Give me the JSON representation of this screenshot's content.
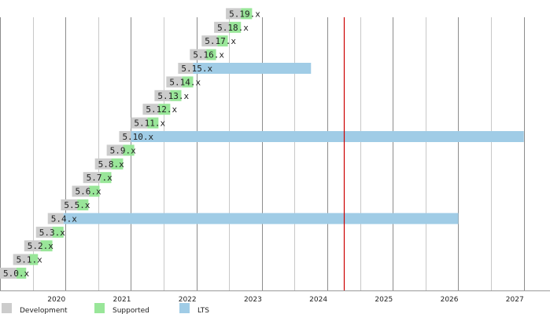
{
  "chart_data": {
    "type": "bar",
    "subtype": "gantt",
    "title": "",
    "xlabel": "",
    "ylabel": "",
    "x_axis": {
      "unit": "year",
      "ticks": [
        "2020",
        "2021",
        "2022",
        "2023",
        "2024",
        "2025",
        "2026",
        "2027"
      ],
      "range": [
        2019.0,
        2027.4
      ],
      "grid": true,
      "minor_grid": "half-year"
    },
    "today_marker": {
      "x": 2024.25,
      "color": "#cc0000"
    },
    "phase_colors": {
      "Development": "#cccccc",
      "Supported": "#99e699",
      "LTS": "#a0cce6"
    },
    "legend": {
      "placement": "bottom-left",
      "entries": [
        "Development",
        "Supported",
        "LTS"
      ]
    },
    "series": [
      {
        "label": "5.0.x",
        "dev": [
          2019.0,
          2019.25
        ],
        "supported": [
          2019.25,
          2019.4
        ]
      },
      {
        "label": "5.1.x",
        "dev": [
          2019.2,
          2019.45
        ],
        "supported": [
          2019.45,
          2019.58
        ]
      },
      {
        "label": "5.2.x",
        "dev": [
          2019.37,
          2019.62
        ],
        "supported": [
          2019.62,
          2019.8
        ]
      },
      {
        "label": "5.3.x",
        "dev": [
          2019.55,
          2019.8
        ],
        "supported": [
          2019.8,
          2019.97
        ]
      },
      {
        "label": "5.4.x",
        "dev": [
          2019.73,
          2019.97
        ],
        "lts": [
          2019.97,
          2026.0
        ]
      },
      {
        "label": "5.5.x",
        "dev": [
          2019.93,
          2020.18
        ],
        "supported": [
          2020.18,
          2020.35
        ]
      },
      {
        "label": "5.6.x",
        "dev": [
          2020.1,
          2020.36
        ],
        "supported": [
          2020.36,
          2020.52
        ]
      },
      {
        "label": "5.7.x",
        "dev": [
          2020.27,
          2020.53
        ],
        "supported": [
          2020.53,
          2020.7
        ]
      },
      {
        "label": "5.8.x",
        "dev": [
          2020.45,
          2020.7
        ],
        "supported": [
          2020.7,
          2020.88
        ]
      },
      {
        "label": "5.9.x",
        "dev": [
          2020.63,
          2020.88
        ],
        "supported": [
          2020.88,
          2021.05
        ]
      },
      {
        "label": "5.10.x",
        "dev": [
          2020.82,
          2021.0
        ],
        "lts": [
          2021.0,
          2027.0
        ]
      },
      {
        "label": "5.11.x",
        "dev": [
          2021.0,
          2021.25
        ],
        "supported": [
          2021.25,
          2021.42
        ]
      },
      {
        "label": "5.12.x",
        "dev": [
          2021.18,
          2021.42
        ],
        "supported": [
          2021.42,
          2021.6
        ]
      },
      {
        "label": "5.13.x",
        "dev": [
          2021.36,
          2021.6
        ],
        "supported": [
          2021.6,
          2021.77
        ]
      },
      {
        "label": "5.14.x",
        "dev": [
          2021.54,
          2021.78
        ],
        "supported": [
          2021.78,
          2021.95
        ]
      },
      {
        "label": "5.15.x",
        "dev": [
          2021.72,
          2021.95
        ],
        "lts": [
          2021.95,
          2023.75
        ]
      },
      {
        "label": "5.16.x",
        "dev": [
          2021.9,
          2022.15
        ],
        "supported": [
          2022.15,
          2022.3
        ]
      },
      {
        "label": "5.17.x",
        "dev": [
          2022.08,
          2022.32
        ],
        "supported": [
          2022.32,
          2022.48
        ]
      },
      {
        "label": "5.18.x",
        "dev": [
          2022.27,
          2022.5
        ],
        "supported": [
          2022.5,
          2022.68
        ]
      },
      {
        "label": "5.19.x",
        "dev": [
          2022.45,
          2022.68
        ],
        "supported": [
          2022.68,
          2022.85
        ]
      }
    ]
  }
}
